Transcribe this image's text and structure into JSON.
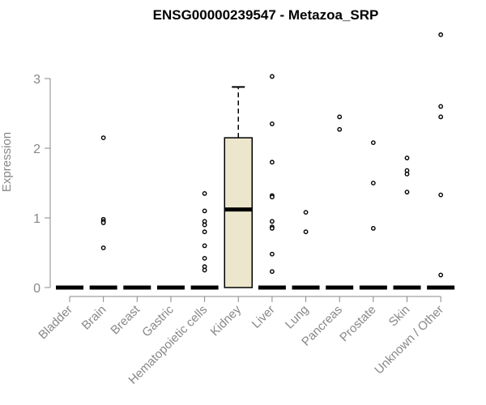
{
  "chart_data": {
    "type": "boxplot",
    "title": "ENSG00000239547 - Metazoa_SRP",
    "xlabel": "",
    "ylabel": "Expression",
    "ylim": [
      0,
      3.7
    ],
    "yticks": [
      0,
      1,
      2,
      3
    ],
    "grid": false,
    "legend": "none",
    "colors": {
      "box_fill": "#ece6cc",
      "box_stroke": "#000000",
      "axis": "#888888"
    },
    "categories": [
      "Bladder",
      "Brain",
      "Breast",
      "Gastric",
      "Hematopoietic cells",
      "Kidney",
      "Liver",
      "Lung",
      "Pancreas",
      "Prostate",
      "Skin",
      "Unknown / Other"
    ],
    "boxes": [
      {
        "category": "Bladder",
        "q1": 0,
        "median": 0,
        "q3": 0,
        "whisker_low": 0,
        "whisker_high": 0,
        "outliers": []
      },
      {
        "category": "Brain",
        "q1": 0,
        "median": 0,
        "q3": 0,
        "whisker_low": 0,
        "whisker_high": 0,
        "outliers": [
          2.15,
          0.98,
          0.95,
          0.93,
          0.57
        ]
      },
      {
        "category": "Breast",
        "q1": 0,
        "median": 0,
        "q3": 0,
        "whisker_low": 0,
        "whisker_high": 0,
        "outliers": []
      },
      {
        "category": "Gastric",
        "q1": 0,
        "median": 0,
        "q3": 0,
        "whisker_low": 0,
        "whisker_high": 0,
        "outliers": []
      },
      {
        "category": "Hematopoietic cells",
        "q1": 0,
        "median": 0,
        "q3": 0,
        "whisker_low": 0,
        "whisker_high": 0,
        "outliers": [
          1.35,
          1.1,
          0.95,
          0.9,
          0.8,
          0.6,
          0.42,
          0.3,
          0.25
        ]
      },
      {
        "category": "Kidney",
        "q1": 0,
        "median": 1.12,
        "q3": 2.15,
        "whisker_low": 0,
        "whisker_high": 2.88,
        "outliers": []
      },
      {
        "category": "Liver",
        "q1": 0,
        "median": 0,
        "q3": 0,
        "whisker_low": 0,
        "whisker_high": 0,
        "outliers": [
          3.03,
          2.35,
          1.8,
          1.32,
          1.3,
          0.95,
          0.87,
          0.85,
          0.48,
          0.23
        ]
      },
      {
        "category": "Lung",
        "q1": 0,
        "median": 0,
        "q3": 0,
        "whisker_low": 0,
        "whisker_high": 0,
        "outliers": [
          1.08,
          0.8
        ]
      },
      {
        "category": "Pancreas",
        "q1": 0,
        "median": 0,
        "q3": 0,
        "whisker_low": 0,
        "whisker_high": 0,
        "outliers": [
          2.45,
          2.27
        ]
      },
      {
        "category": "Prostate",
        "q1": 0,
        "median": 0,
        "q3": 0,
        "whisker_low": 0,
        "whisker_high": 0,
        "outliers": [
          2.08,
          1.5,
          0.85
        ]
      },
      {
        "category": "Skin",
        "q1": 0,
        "median": 0,
        "q3": 0,
        "whisker_low": 0,
        "whisker_high": 0,
        "outliers": [
          1.86,
          1.68,
          1.63,
          1.37
        ]
      },
      {
        "category": "Unknown / Other",
        "q1": 0,
        "median": 0,
        "q3": 0,
        "whisker_low": 0,
        "whisker_high": 0,
        "outliers": [
          3.63,
          2.6,
          2.45,
          1.33,
          0.18
        ]
      }
    ]
  }
}
